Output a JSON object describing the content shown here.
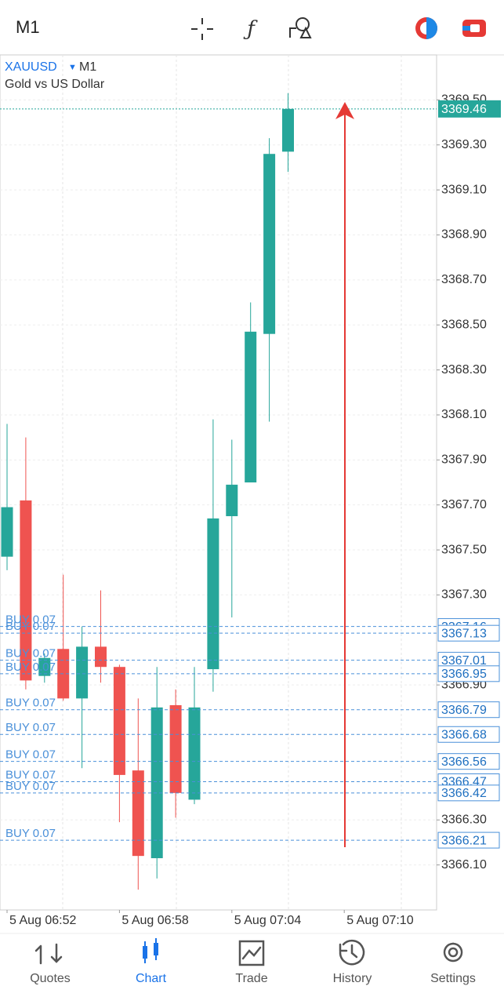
{
  "top_bar": {
    "timeframe": "M1"
  },
  "chart_data": {
    "type": "candlestick",
    "symbol": "XAUUSD",
    "timeframe": "M1",
    "description": "Gold vs US Dollar",
    "open": [
      3367.47,
      3367.72,
      3366.94,
      3367.06,
      3366.84,
      3367.07,
      3366.98,
      3366.52,
      3366.13,
      3366.81,
      3366.39,
      3366.97,
      3367.65,
      3367.8,
      3368.46,
      3369.27
    ],
    "high": [
      3368.06,
      3368.0,
      3367.04,
      3367.39,
      3367.16,
      3367.32,
      3366.99,
      3366.84,
      3366.98,
      3366.88,
      3366.98,
      3368.08,
      3367.99,
      3368.6,
      3369.33,
      3369.53
    ],
    "low": [
      3367.41,
      3366.88,
      3366.91,
      3366.83,
      3366.53,
      3366.91,
      3366.29,
      3365.99,
      3366.04,
      3366.31,
      3366.37,
      3366.87,
      3367.2,
      3367.8,
      3368.07,
      3369.18
    ],
    "close": [
      3367.69,
      3366.92,
      3367.02,
      3366.84,
      3367.07,
      3366.98,
      3366.5,
      3366.14,
      3366.8,
      3366.42,
      3366.8,
      3367.64,
      3367.79,
      3368.47,
      3369.26,
      3369.46
    ],
    "up_color": "#26a69a",
    "down_color": "#ef5350",
    "x_labels": [
      "5 Aug 06:52",
      "5 Aug 06:58",
      "5 Aug 07:04",
      "5 Aug 07:10"
    ],
    "ylim": [
      3365.9,
      3369.7
    ],
    "yticks": [
      {
        "value": 3366.1,
        "label": "3366.10"
      },
      {
        "value": 3366.3,
        "label": "3366.30"
      },
      {
        "value": 3366.9,
        "label": "3366.90"
      },
      {
        "value": 3367.3,
        "label": "3367.30"
      },
      {
        "value": 3367.5,
        "label": "3367.50"
      },
      {
        "value": 3367.7,
        "label": "3367.70"
      },
      {
        "value": 3367.9,
        "label": "3367.90"
      },
      {
        "value": 3368.1,
        "label": "3368.10"
      },
      {
        "value": 3368.3,
        "label": "3368.30"
      },
      {
        "value": 3368.5,
        "label": "3368.50"
      },
      {
        "value": 3368.7,
        "label": "3368.70"
      },
      {
        "value": 3368.9,
        "label": "3368.90"
      },
      {
        "value": 3369.1,
        "label": "3369.10"
      },
      {
        "value": 3369.3,
        "label": "3369.30"
      },
      {
        "value": 3369.5,
        "label": "3369.50"
      }
    ],
    "last_price": 3369.46,
    "orders": [
      {
        "label": "BUY 0.07",
        "price": 3367.16
      },
      {
        "label": "BUY 0.07",
        "price": 3367.13
      },
      {
        "label": "BUY 0.07",
        "price": 3367.01
      },
      {
        "label": "BUY 0.07",
        "price": 3366.95
      },
      {
        "label": "BUY 0.07",
        "price": 3366.79
      },
      {
        "label": "BUY 0.07",
        "price": 3366.68
      },
      {
        "label": "BUY 0.07",
        "price": 3366.56
      },
      {
        "label": "BUY 0.07",
        "price": 3366.47
      },
      {
        "label": "BUY 0.07",
        "price": 3366.42
      },
      {
        "label": "BUY 0.07",
        "price": 3366.21
      }
    ]
  },
  "nav": [
    {
      "label": "Quotes"
    },
    {
      "label": "Chart"
    },
    {
      "label": "Trade"
    },
    {
      "label": "History"
    },
    {
      "label": "Settings"
    }
  ]
}
